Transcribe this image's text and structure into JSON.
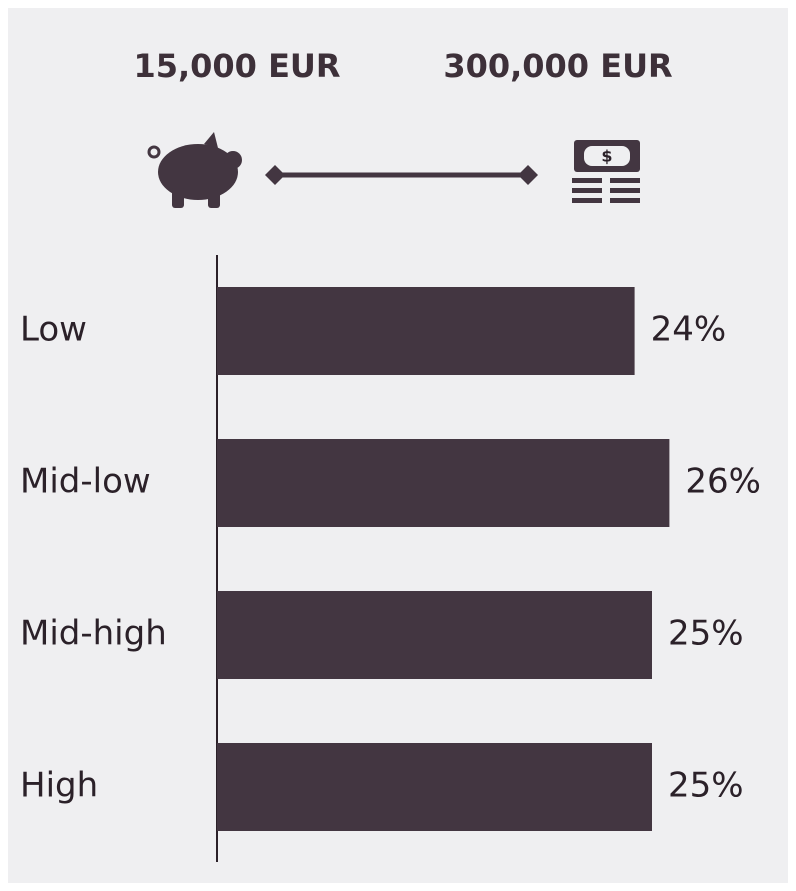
{
  "chart_data": {
    "type": "bar",
    "orientation": "horizontal",
    "annotations": [
      "15,000 EUR",
      "300,000 EUR"
    ],
    "categories": [
      "Low",
      "Mid-low",
      "Mid-high",
      "High"
    ],
    "values": [
      24,
      26,
      25,
      25
    ],
    "value_labels": [
      "24%",
      "26%",
      "25%",
      "25%"
    ],
    "color": "#433641"
  }
}
